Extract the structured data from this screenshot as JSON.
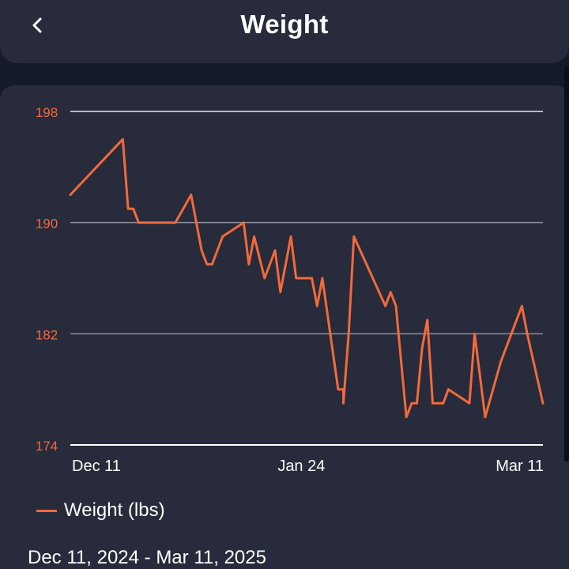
{
  "header": {
    "title": "Weight",
    "back_icon": "chevron-left-icon"
  },
  "colors": {
    "background": "#151a29",
    "card": "#272b3b",
    "accent": "#f26a3b",
    "grid": "#c4c6cc",
    "text": "#ffffff"
  },
  "chart_data": {
    "type": "line",
    "title": "",
    "xlabel": "",
    "ylabel": "",
    "ylim": [
      174,
      198
    ],
    "yticks": [
      174,
      182,
      190,
      198
    ],
    "ytick_labels": [
      "174",
      "182",
      "190",
      "198"
    ],
    "xlim": [
      "2024-12-11",
      "2025-03-11"
    ],
    "xticks": [
      "2024-12-11",
      "2025-01-24",
      "2025-03-11"
    ],
    "xtick_labels": [
      "Dec 11",
      "Jan 24",
      "Mar 11"
    ],
    "grid": true,
    "legend": "bottom-left",
    "series": [
      {
        "name": "Weight (lbs)",
        "color": "#f26a3b",
        "x": [
          "2024-12-11",
          "2024-12-21",
          "2024-12-22",
          "2024-12-23",
          "2024-12-24",
          "2024-12-25",
          "2024-12-31",
          "2025-01-03",
          "2025-01-05",
          "2025-01-06",
          "2025-01-07",
          "2025-01-09",
          "2025-01-13",
          "2025-01-14",
          "2025-01-15",
          "2025-01-17",
          "2025-01-19",
          "2025-01-20",
          "2025-01-22",
          "2025-01-23",
          "2025-01-26",
          "2025-01-27",
          "2025-01-28",
          "2025-01-31",
          "2025-02-01",
          "2025-02-01",
          "2025-02-02",
          "2025-02-03",
          "2025-02-09",
          "2025-02-10",
          "2025-02-11",
          "2025-02-13",
          "2025-02-14",
          "2025-02-15",
          "2025-02-16",
          "2025-02-17",
          "2025-02-18",
          "2025-02-19",
          "2025-02-20",
          "2025-02-21",
          "2025-02-25",
          "2025-02-26",
          "2025-02-28",
          "2025-03-03",
          "2025-03-07",
          "2025-03-08",
          "2025-03-11"
        ],
        "values": [
          192,
          196,
          191,
          191,
          190,
          190,
          190,
          192,
          188,
          187,
          187,
          189,
          190,
          187,
          189,
          186,
          188,
          185,
          189,
          186,
          186,
          184,
          186,
          178,
          178,
          177,
          182,
          189,
          184,
          185,
          184,
          176,
          177,
          177,
          181,
          183,
          177,
          177,
          177,
          178,
          177,
          182,
          176,
          180,
          184,
          182,
          177
        ]
      }
    ]
  },
  "legend": {
    "label": "Weight (lbs)"
  },
  "date_range": "Dec 11, 2024 - Mar 11, 2025"
}
